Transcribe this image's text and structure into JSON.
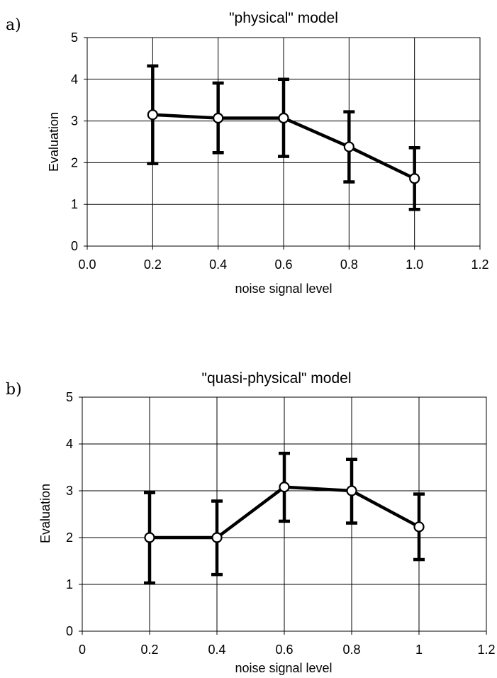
{
  "chart_data": [
    {
      "type": "line",
      "panel_label": "a)",
      "title": "\"physical\" model",
      "xlabel": "noise signal level",
      "ylabel": "Evaluation",
      "xlim": [
        0.0,
        1.2
      ],
      "ylim": [
        0,
        5
      ],
      "x_tick_labels": [
        "0.0",
        "0.2",
        "0.4",
        "0.6",
        "0.8",
        "1.0",
        "1.2"
      ],
      "y_tick_labels": [
        "0",
        "1",
        "2",
        "3",
        "4",
        "5"
      ],
      "grid": true,
      "x": [
        0.2,
        0.4,
        0.6,
        0.8,
        1.0
      ],
      "series": [
        {
          "values": [
            3.15,
            3.07,
            3.07,
            2.38,
            1.62
          ],
          "err_low": [
            1.98,
            2.24,
            2.15,
            1.54,
            0.88
          ],
          "err_high": [
            4.32,
            3.91,
            4.0,
            3.22,
            2.36
          ]
        }
      ]
    },
    {
      "type": "line",
      "panel_label": "b)",
      "title": "\"quasi-physical\" model",
      "xlabel": "noise signal level",
      "ylabel": "Evaluation",
      "xlim": [
        0,
        1.2
      ],
      "ylim": [
        0,
        5
      ],
      "x_tick_labels": [
        "0",
        "0.2",
        "0.4",
        "0.6",
        "0.8",
        "1",
        "1.2"
      ],
      "y_tick_labels": [
        "0",
        "1",
        "2",
        "3",
        "4",
        "5"
      ],
      "grid": true,
      "x": [
        0.2,
        0.4,
        0.6,
        0.8,
        1.0
      ],
      "series": [
        {
          "values": [
            2.0,
            2.0,
            3.08,
            3.0,
            2.23
          ],
          "err_low": [
            1.03,
            1.21,
            2.35,
            2.31,
            1.53
          ],
          "err_high": [
            2.96,
            2.78,
            3.8,
            3.67,
            2.93
          ]
        }
      ]
    }
  ]
}
